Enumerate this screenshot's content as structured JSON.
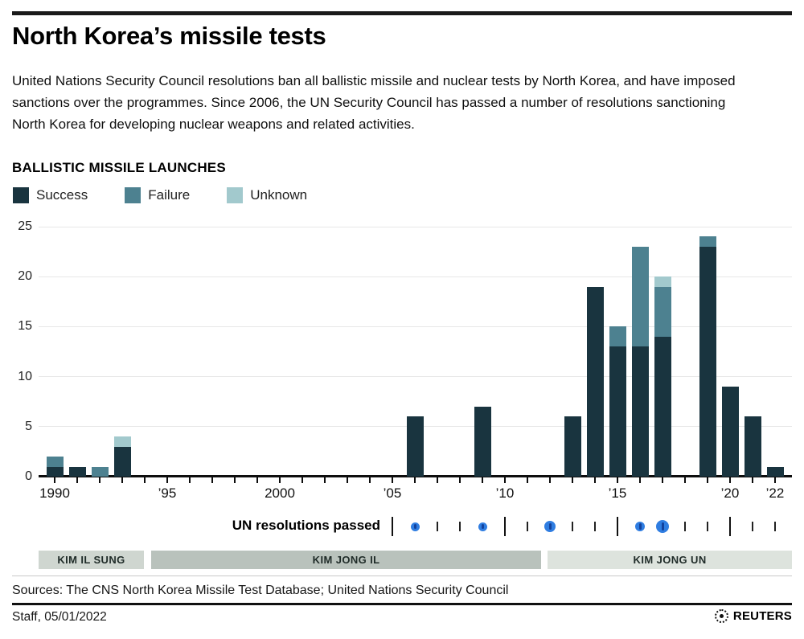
{
  "page": {
    "title": "North Korea’s missile tests",
    "intro": "United Nations Security Council resolutions ban all ballistic missile and nuclear tests by North Korea, and have imposed sanctions over the programmes. Since 2006, the UN Security Council has passed a number of resolutions sanctioning North Korea for developing nuclear weapons and related activities.",
    "sources": "Sources: The CNS North Korea Missile Test Database; United Nations Security Council",
    "credit": "Staff, 05/01/2022",
    "brand": "REUTERS"
  },
  "chart_data": {
    "type": "bar",
    "stacked": true,
    "title": "BALLISTIC MISSILE LAUNCHES",
    "grid": true,
    "ylim": [
      0,
      25
    ],
    "yticks": [
      0,
      5,
      10,
      15,
      20,
      25
    ],
    "years": [
      1990,
      1991,
      1992,
      1993,
      1994,
      1995,
      1996,
      1997,
      1998,
      1999,
      2000,
      2001,
      2002,
      2003,
      2004,
      2005,
      2006,
      2007,
      2008,
      2009,
      2010,
      2011,
      2012,
      2013,
      2014,
      2015,
      2016,
      2017,
      2018,
      2019,
      2020,
      2021,
      2022
    ],
    "series": [
      {
        "name": "Success",
        "color": "#19343f",
        "values": [
          1,
          1,
          0,
          3,
          0,
          0,
          0,
          0,
          0,
          0,
          0,
          0,
          0,
          0,
          0,
          0,
          6,
          0,
          0,
          7,
          0,
          0,
          0,
          6,
          19,
          13,
          13,
          14,
          0,
          23,
          9,
          6,
          1
        ]
      },
      {
        "name": "Failure",
        "color": "#4d8190",
        "values": [
          1,
          0,
          1,
          0,
          0,
          0,
          0,
          0,
          0,
          0,
          0,
          0,
          0,
          0,
          0,
          0,
          0,
          0,
          0,
          0,
          0,
          0,
          0,
          0,
          0,
          2,
          10,
          5,
          0,
          1,
          0,
          0,
          0
        ]
      },
      {
        "name": "Unknown",
        "color": "#a2c9cd",
        "values": [
          0,
          0,
          0,
          1,
          0,
          0,
          0,
          0,
          0,
          0,
          0,
          0,
          0,
          0,
          0,
          0,
          0,
          0,
          0,
          0,
          0,
          0,
          0,
          0,
          0,
          0,
          0,
          1,
          0,
          0,
          0,
          0,
          0
        ]
      }
    ],
    "x_tick_labels": [
      {
        "year": 1990,
        "label": "1990"
      },
      {
        "year": 1995,
        "label": "’95"
      },
      {
        "year": 2000,
        "label": "2000"
      },
      {
        "year": 2005,
        "label": "’05"
      },
      {
        "year": 2010,
        "label": "’10"
      },
      {
        "year": 2015,
        "label": "’15"
      },
      {
        "year": 2020,
        "label": "’20"
      },
      {
        "year": 2022,
        "label": "’22"
      }
    ],
    "un_resolutions": {
      "label": "UN resolutions passed",
      "dot_color": "#2f7de1",
      "dots": [
        {
          "year": 2006,
          "size": 11
        },
        {
          "year": 2009,
          "size": 11
        },
        {
          "year": 2012,
          "size": 14
        },
        {
          "year": 2016,
          "size": 12
        },
        {
          "year": 2017,
          "size": 16
        }
      ],
      "tick_years": [
        2007,
        2008,
        2011,
        2013,
        2014,
        2018,
        2019,
        2021,
        2022
      ],
      "separator_years": [
        2005,
        2010,
        2015,
        2020
      ]
    },
    "leaders": [
      {
        "name": "KIM IL SUNG",
        "from": 1989.3,
        "to": 1993.95,
        "color": "#cfd6d0"
      },
      {
        "name": "KIM JONG IL",
        "from": 1994.3,
        "to": 2011.6,
        "color": "#b9c2bc"
      },
      {
        "name": "KIM JONG UN",
        "from": 2011.9,
        "to": 2022.75,
        "color": "#dde3dd"
      }
    ]
  }
}
